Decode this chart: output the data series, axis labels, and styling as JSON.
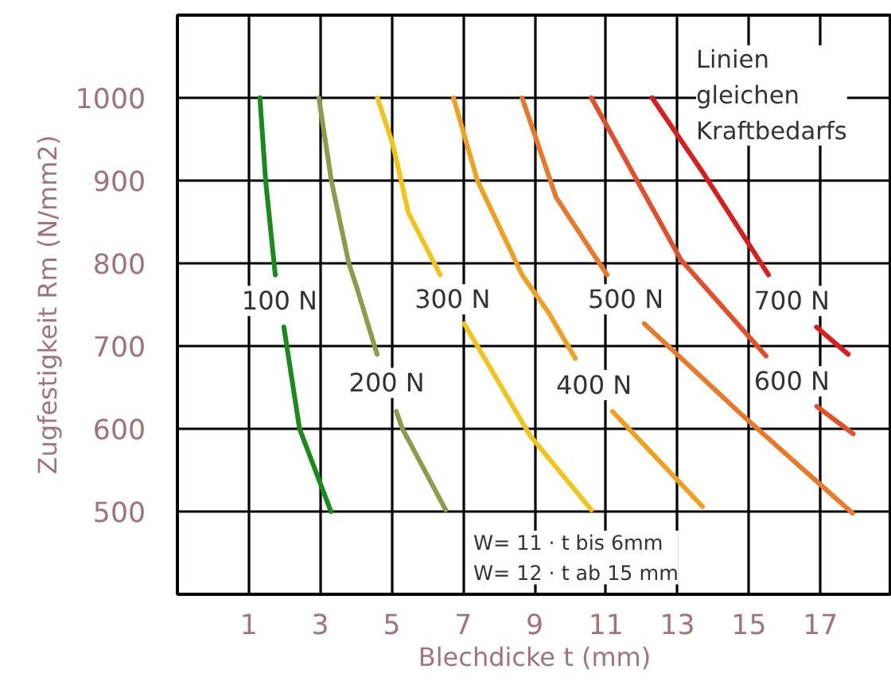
{
  "chart_data": {
    "type": "line",
    "xlabel": "Blechdicke t (mm)",
    "ylabel": "Zugfestigkeit Rm (N/mm2)",
    "xlim": [
      -1,
      19
    ],
    "ylim": [
      400,
      1100
    ],
    "xticks": [
      1,
      3,
      5,
      7,
      9,
      11,
      13,
      15,
      17
    ],
    "yticks": [
      500,
      600,
      700,
      800,
      900,
      1000
    ],
    "grid": true,
    "line_style": "solid",
    "marker": "none",
    "series": [
      {
        "name": "100 N",
        "color": "#1a8a1a",
        "x": [
          1.31,
          1.47,
          1.74,
          1.86,
          1.98,
          2.42,
          3.3
        ],
        "values": [
          1000,
          900,
          786,
          null,
          723,
          600,
          500
        ]
      },
      {
        "name": "200 N",
        "color": "#8f9a4a",
        "x": [
          2.96,
          3.31,
          3.8,
          4.02,
          4.59,
          4.86,
          5.13,
          5.3,
          6.51
        ],
        "values": [
          1000,
          900,
          800,
          771,
          690,
          null,
          621,
          600,
          502
        ]
      },
      {
        "name": "300 N",
        "color": "#f2c41a",
        "x": [
          4.6,
          5.03,
          5.47,
          6.36,
          6.7,
          7.03,
          7.4,
          8.87,
          10.59
        ],
        "values": [
          1000,
          944,
          861,
          786,
          null,
          727,
          700,
          592,
          502
        ]
      },
      {
        "name": "400 N",
        "color": "#f0a020",
        "x": [
          6.73,
          7.4,
          8.65,
          9.4,
          10.14,
          10.66,
          11.18,
          13.7
        ],
        "values": [
          1000,
          900,
          786,
          740,
          685,
          null,
          621,
          506
        ]
      },
      {
        "name": "500 N",
        "color": "#e8782a",
        "x": [
          8.65,
          9.6,
          11.03,
          11.55,
          12.07,
          14.8,
          17.9
        ],
        "values": [
          1000,
          880,
          786,
          null,
          727,
          617,
          498
        ]
      },
      {
        "name": "600 N",
        "color": "#e0502a",
        "x": [
          10.59,
          13.1,
          15.48,
          16.2,
          16.9,
          17.92
        ],
        "values": [
          1000,
          804,
          688,
          null,
          627,
          594
        ]
      },
      {
        "name": "700 N",
        "color": "#d81e1e",
        "x": [
          12.29,
          13.77,
          15.55,
          16.2,
          16.89,
          17.78
        ],
        "values": [
          1000,
          906,
          786,
          null,
          723,
          690
        ]
      }
    ],
    "annotations": [
      "Linien\ngleichen\nKraftbedarfs",
      "W= 11 · t bis 6mm\nW= 12 · t ab 15 mm"
    ]
  }
}
